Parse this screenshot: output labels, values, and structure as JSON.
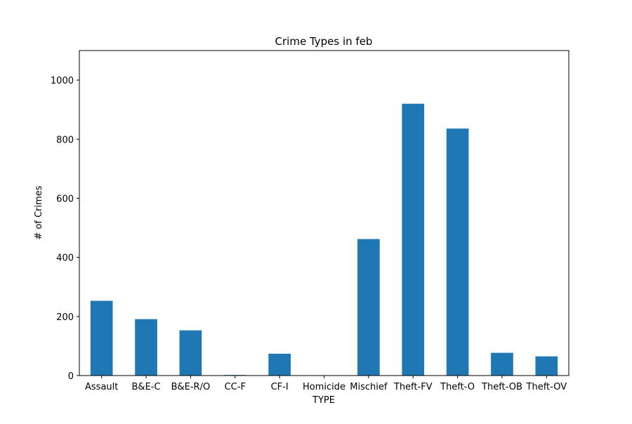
{
  "chart_data": {
    "type": "bar",
    "title": "Crime Types in feb",
    "xlabel": "TYPE",
    "ylabel": "# of Crimes",
    "categories": [
      "Assault",
      "B&E-C",
      "B&E-R/O",
      "CC-F",
      "CF-I",
      "Homicide",
      "Mischief",
      "Theft-FV",
      "Theft-O",
      "Theft-OB",
      "Theft-OV"
    ],
    "values": [
      253,
      191,
      153,
      2,
      74,
      1,
      462,
      920,
      836,
      77,
      65
    ],
    "ylim": [
      0,
      1100
    ],
    "yticks": [
      0,
      200,
      400,
      600,
      800,
      1000
    ],
    "grid": false,
    "bar_color": "#1f77b4"
  }
}
